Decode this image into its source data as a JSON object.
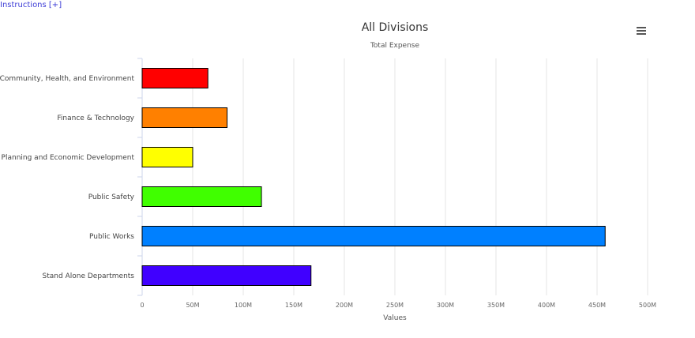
{
  "header": {
    "instructions_link": "Instructions [+]",
    "menu_icon": "hamburger-menu-icon"
  },
  "chart_data": {
    "type": "bar",
    "orientation": "horizontal",
    "title": "All Divisions",
    "subtitle": "Total Expense",
    "xlabel": "Values",
    "ylabel": "",
    "categories": [
      "Community, Health, and Environment",
      "Finance & Technology",
      "Planning and Economic Development",
      "Public Safety",
      "Public Works",
      "Stand Alone Departments"
    ],
    "values": [
      65000000,
      84000000,
      50000000,
      118000000,
      458000000,
      167000000
    ],
    "colors": [
      "#ff0000",
      "#ff8000",
      "#ffff00",
      "#40ff00",
      "#0080ff",
      "#4000ff"
    ],
    "xlim": [
      0,
      500000000
    ],
    "ticks": [
      0,
      50000000,
      100000000,
      150000000,
      200000000,
      250000000,
      300000000,
      350000000,
      400000000,
      450000000,
      500000000
    ],
    "tick_labels": [
      "0",
      "50M",
      "100M",
      "150M",
      "200M",
      "250M",
      "300M",
      "350M",
      "400M",
      "450M",
      "500M"
    ],
    "grid": true,
    "legend": "none"
  }
}
